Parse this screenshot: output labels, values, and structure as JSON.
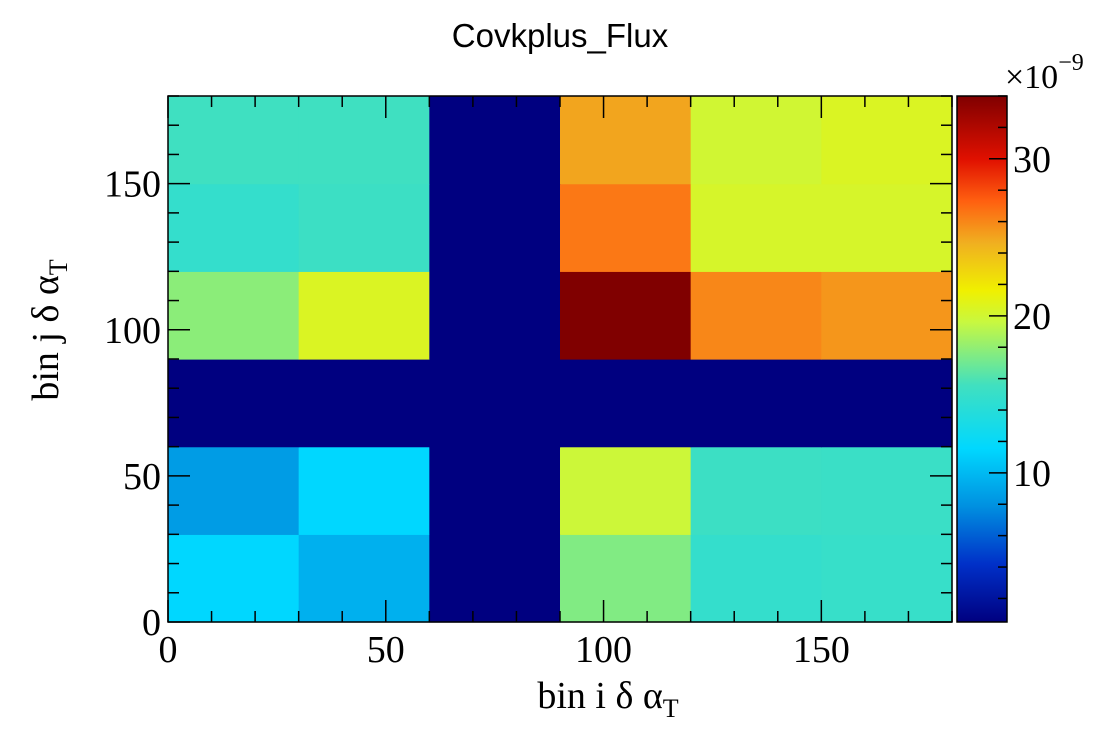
{
  "chart_data": {
    "type": "heatmap",
    "title": "Covkplus_Flux",
    "xlabel": "bin i δ α",
    "xlabel_sub": "T",
    "ylabel": "bin j δ α",
    "ylabel_sub": "T",
    "xlim": [
      0,
      180
    ],
    "ylim": [
      0,
      180
    ],
    "x_ticks": [
      0,
      50,
      100,
      150
    ],
    "y_ticks": [
      0,
      50,
      100,
      150
    ],
    "x_edges": [
      0,
      30,
      60,
      90,
      120,
      150,
      180
    ],
    "y_edges": [
      0,
      30,
      60,
      90,
      120,
      150,
      180
    ],
    "z_multiplier": "×10",
    "z_multiplier_exp": "−9",
    "z_range": [
      0.5,
      34
    ],
    "z_ticks": [
      10,
      20,
      30
    ],
    "colormap": "rainbow (dark blue → cyan → yellow → dark red)",
    "values": [
      [
        11.5,
        9.5,
        0.5,
        17.5,
        14.8,
        15.0
      ],
      [
        8.5,
        11.5,
        0.5,
        19.8,
        15.3,
        15.2
      ],
      [
        0.5,
        0.5,
        0.5,
        0.5,
        0.5,
        0.5
      ],
      [
        17.8,
        20.5,
        0.5,
        34.0,
        26.0,
        25.5
      ],
      [
        14.8,
        15.3,
        0.5,
        26.5,
        20.3,
        20.3
      ],
      [
        15.5,
        15.5,
        0.5,
        25.0,
        20.0,
        20.5
      ]
    ]
  }
}
